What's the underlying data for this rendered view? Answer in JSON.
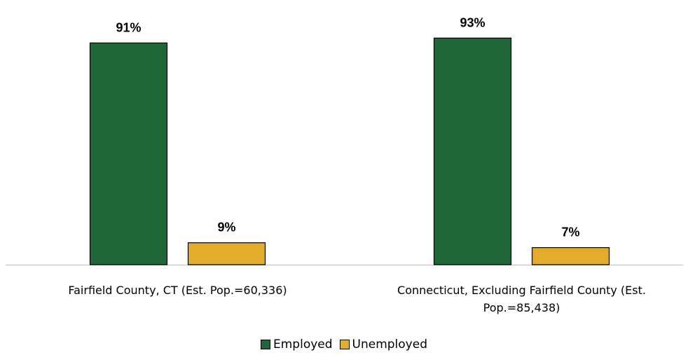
{
  "chart_data": {
    "type": "bar",
    "categories": [
      [
        "Fairfield County, CT (Est. Pop.=60,336)"
      ],
      [
        "Connecticut, Excluding Fairfield County (Est.",
        "Pop.=85,438)"
      ]
    ],
    "series": [
      {
        "name": "Employed",
        "values": [
          91,
          93
        ],
        "labels": [
          "91%",
          "93%"
        ],
        "color": "#216638"
      },
      {
        "name": "Unemployed",
        "values": [
          9,
          7
        ],
        "labels": [
          "9%",
          "7%"
        ],
        "color": "#E3AC2D"
      }
    ],
    "ylim": [
      0,
      100
    ],
    "grid": false,
    "legend_position": "bottom"
  }
}
